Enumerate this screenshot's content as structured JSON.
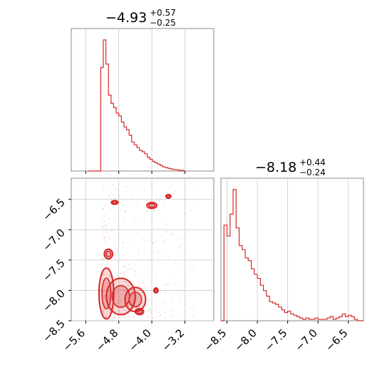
{
  "colors": {
    "primary": "#d62728",
    "grid": "#c8c8c8",
    "frame": "#888888"
  },
  "chart_data": [
    {
      "type": "histogram",
      "panel": "top-left",
      "title": {
        "main": "−4.93",
        "upper": "+0.57",
        "lower": "−0.25"
      },
      "xlim": [
        -5.95,
        -2.5
      ],
      "xticks": [
        -5.6,
        -4.8,
        -4.0,
        -3.2
      ],
      "bin_edges_start": -5.55,
      "bin_width": 0.0625,
      "counts": [
        0,
        0,
        0,
        0,
        0,
        150,
        190,
        155,
        110,
        98,
        92,
        84,
        80,
        71,
        64,
        60,
        52,
        42,
        38,
        34,
        30,
        28,
        25,
        20,
        17,
        14,
        12,
        10,
        8,
        6,
        5,
        4,
        3,
        2,
        2,
        1,
        1,
        0
      ]
    },
    {
      "type": "histogram",
      "panel": "bottom-right",
      "title": {
        "main": "−8.18",
        "upper": "+0.44",
        "lower": "−0.24"
      },
      "xlim": [
        -8.6,
        -6.25
      ],
      "xticks": [
        -8.5,
        -8.0,
        -7.5,
        -7.0,
        -6.5
      ],
      "xticklabels": [
        "−8.5",
        "−8.0",
        "−7.5",
        "−7.0",
        "−6.5"
      ],
      "bin_edges_start": -8.6,
      "bin_width": 0.05,
      "counts": [
        0,
        70,
        62,
        78,
        96,
        68,
        55,
        52,
        46,
        44,
        38,
        34,
        31,
        26,
        22,
        18,
        14,
        13,
        12,
        10,
        8,
        6,
        7,
        5,
        4,
        3,
        2,
        1,
        2,
        1,
        1,
        2,
        1,
        1,
        1,
        2,
        3,
        1,
        2,
        3,
        5,
        3,
        4,
        3,
        1,
        0,
        0
      ]
    },
    {
      "type": "scatter-contour",
      "panel": "bottom-left",
      "xlim": [
        -5.95,
        -2.5
      ],
      "ylim": [
        -8.5,
        -6.15
      ],
      "xticks": [
        -5.6,
        -4.8,
        -4.0,
        -3.2
      ],
      "xticklabels": [
        "−5.6",
        "−4.8",
        "−4.0",
        "−3.2"
      ],
      "yticks": [
        -6.5,
        -7.0,
        -7.5,
        -8.0,
        -8.5
      ],
      "yticklabels": [
        "−6.5",
        "−7.0",
        "−7.5",
        "−8.0",
        "−8.5"
      ],
      "contour_blobs": [
        {
          "x": -5.1,
          "y": -8.05,
          "rx": 0.18,
          "ry": 0.42
        },
        {
          "x": -4.75,
          "y": -8.1,
          "rx": 0.35,
          "ry": 0.3
        },
        {
          "x": -4.4,
          "y": -8.15,
          "rx": 0.25,
          "ry": 0.2
        },
        {
          "x": -5.05,
          "y": -7.4,
          "rx": 0.1,
          "ry": 0.08
        },
        {
          "x": -4.9,
          "y": -6.55,
          "rx": 0.08,
          "ry": 0.03
        },
        {
          "x": -4.0,
          "y": -6.6,
          "rx": 0.12,
          "ry": 0.05
        },
        {
          "x": -3.6,
          "y": -6.45,
          "rx": 0.06,
          "ry": 0.03
        },
        {
          "x": -4.3,
          "y": -8.35,
          "rx": 0.1,
          "ry": 0.05
        },
        {
          "x": -3.9,
          "y": -8.0,
          "rx": 0.05,
          "ry": 0.04
        }
      ]
    }
  ]
}
